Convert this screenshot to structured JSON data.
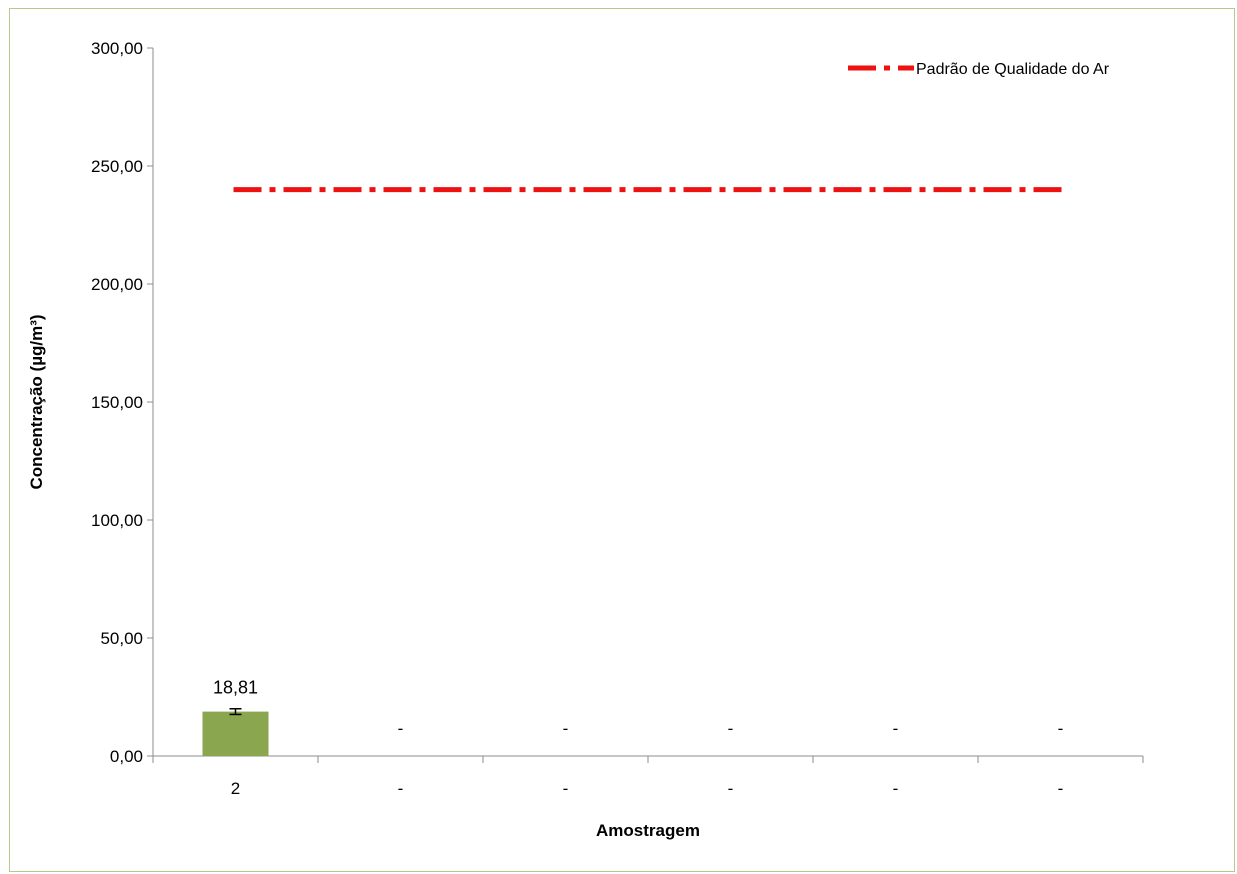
{
  "chart_data": {
    "type": "bar",
    "title": "",
    "xlabel": "Amostragem",
    "ylabel": "Concentração (µg/m³)",
    "ylim": [
      0,
      300
    ],
    "y_ticks": [
      "0,00",
      "50,00",
      "100,00",
      "150,00",
      "200,00",
      "250,00",
      "300,00"
    ],
    "categories": [
      "2",
      "-",
      "-",
      "-",
      "-",
      "-"
    ],
    "series": [
      {
        "values": [
          18.81,
          null,
          null,
          null,
          null,
          null
        ],
        "data_labels": [
          "18,81",
          "-",
          "-",
          "-",
          "-",
          "-"
        ],
        "error": [
          1.2,
          null,
          null,
          null,
          null,
          null
        ],
        "color": "#8aa64e"
      }
    ],
    "reference_line": {
      "name": "Padrão de Qualidade do Ar",
      "value": 240,
      "color": "#ee1111",
      "style": "dash-dot"
    },
    "legend_position": "top-right",
    "grid": false
  }
}
